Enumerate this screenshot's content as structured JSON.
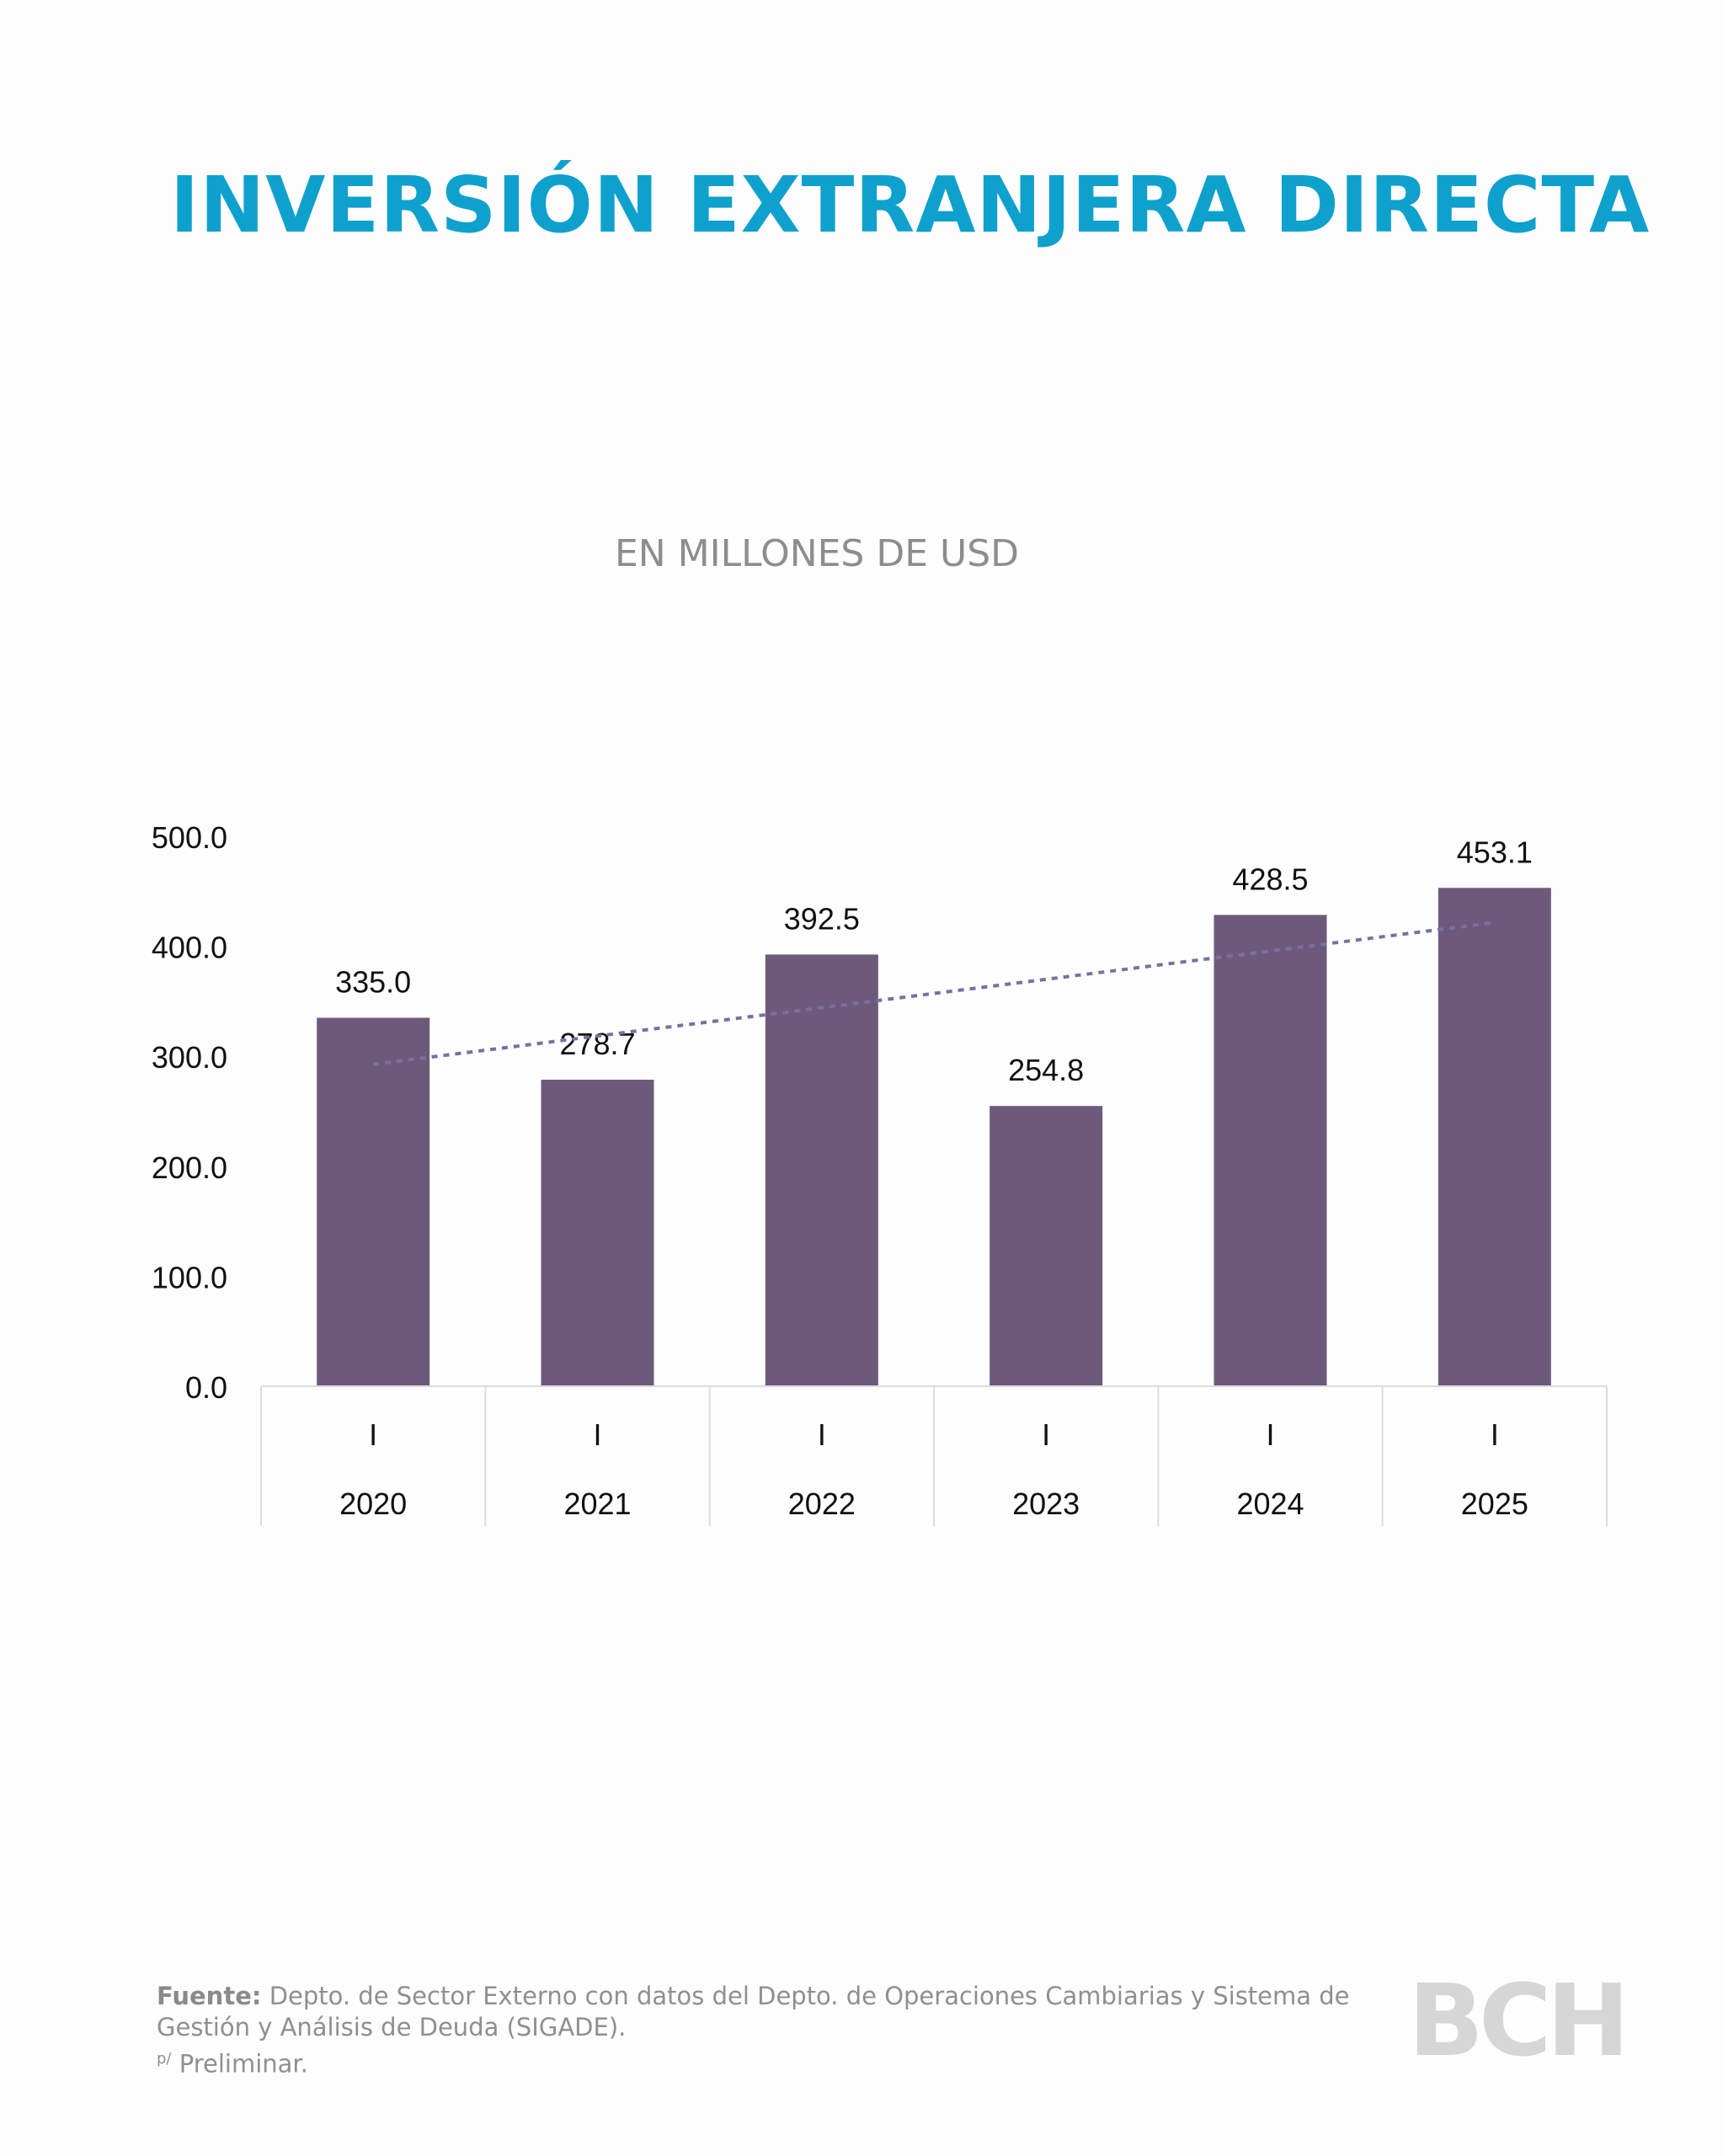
{
  "title": "INVERSIÓN EXTRANJERA DIRECTA",
  "subtitle": "EN MILLONES DE USD",
  "footer": {
    "source_label": "Fuente:",
    "source_text": "Depto. de Sector Externo con datos del Depto. de Operaciones Cambiarias y Sistema de Gestión y Análisis de Deuda (SIGADE).",
    "note_superscript": "p/",
    "note_text": "Preliminar."
  },
  "logo_text": "BCH",
  "colors": {
    "title": "#0ea1cd",
    "bar": "#6d5a7b",
    "trendline": "#7b6f9f",
    "subtitle": "#8d8d8d",
    "axis_line": "#dcdcdc"
  },
  "chart_data": {
    "type": "bar",
    "title": "INVERSIÓN EXTRANJERA DIRECTA",
    "subtitle": "EN MILLONES DE USD",
    "categories": [
      "I 2020",
      "I 2021",
      "I 2022",
      "I 2023",
      "I 2024",
      "I 2025"
    ],
    "category_quarter": [
      "I",
      "I",
      "I",
      "I",
      "I",
      "I"
    ],
    "category_year": [
      "2020",
      "2021",
      "2022",
      "2023",
      "2024",
      "2025"
    ],
    "values": [
      335.0,
      278.7,
      392.5,
      254.8,
      428.5,
      453.1
    ],
    "data_labels": [
      "335.0",
      "278.7",
      "392.5",
      "254.8",
      "428.5",
      "453.1"
    ],
    "trendline": {
      "type": "linear",
      "style": "dotted"
    },
    "ylim": [
      0,
      500
    ],
    "yticks": [
      0,
      100,
      200,
      300,
      400,
      500
    ],
    "ytick_labels": [
      "0.0",
      "100.0",
      "200.0",
      "300.0",
      "400.0",
      "500.0"
    ],
    "xlabel": "",
    "ylabel": "",
    "grid": false,
    "legend": "none"
  }
}
